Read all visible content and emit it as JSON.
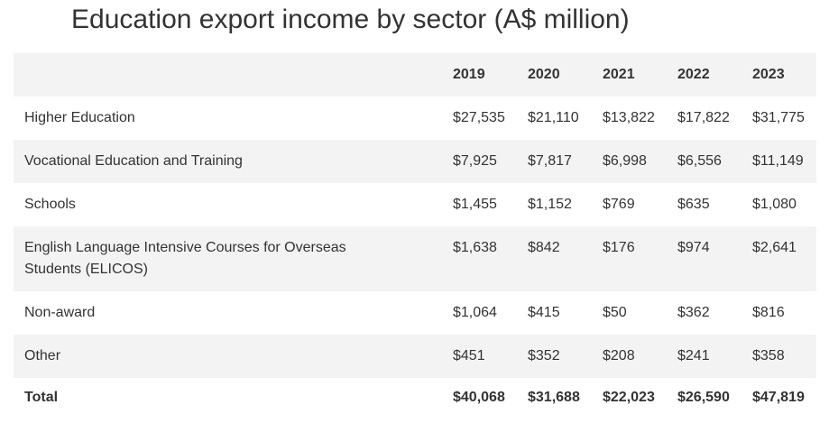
{
  "title": "Education export income by sector (A$ million)",
  "chart_data": {
    "type": "table",
    "title": "Education export income by sector (A$ million)",
    "columns": [
      "",
      "2019",
      "2020",
      "2021",
      "2022",
      "2023"
    ],
    "rows": [
      {
        "label": "Higher Education",
        "values": [
          "$27,535",
          "$21,110",
          "$13,822",
          "$17,822",
          "$31,775"
        ]
      },
      {
        "label": "Vocational Education and Training",
        "values": [
          "$7,925",
          "$7,817",
          "$6,998",
          "$6,556",
          "$11,149"
        ]
      },
      {
        "label": "Schools",
        "values": [
          "$1,455",
          "$1,152",
          "$769",
          "$635",
          "$1,080"
        ]
      },
      {
        "label": "English Language Intensive Courses for Overseas Students (ELICOS)",
        "values": [
          "$1,638",
          "$842",
          "$176",
          "$974",
          "$2,641"
        ]
      },
      {
        "label": "Non-award",
        "values": [
          "$1,064",
          "$415",
          "$50",
          "$362",
          "$816"
        ]
      },
      {
        "label": "Other",
        "values": [
          "$451",
          "$352",
          "$208",
          "$241",
          "$358"
        ]
      },
      {
        "label": "Total",
        "values": [
          "$40,068",
          "$31,688",
          "$22,023",
          "$26,590",
          "$47,819"
        ]
      }
    ]
  }
}
